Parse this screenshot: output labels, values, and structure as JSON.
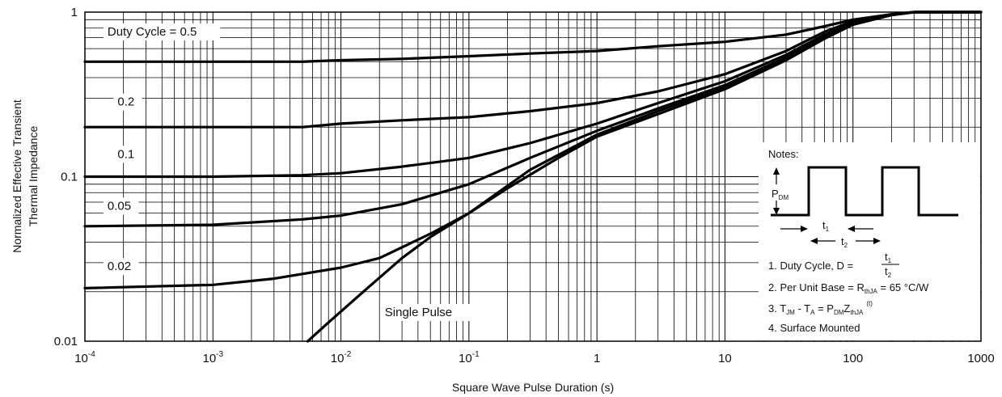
{
  "chart_data": {
    "type": "line",
    "xlabel": "Square Wave Pulse Duration (s)",
    "ylabel_line1": "Normalized Effective Transient",
    "ylabel_line2": "Thermal Impedance",
    "x_scale": "log",
    "y_scale": "log",
    "xlim": [
      0.0001,
      1000
    ],
    "ylim": [
      0.01,
      1
    ],
    "grid": true,
    "x_tick_labels": [
      {
        "value": 0.0001,
        "base": "10",
        "exp": "-4"
      },
      {
        "value": 0.001,
        "base": "10",
        "exp": "-3"
      },
      {
        "value": 0.01,
        "base": "10",
        "exp": "-2"
      },
      {
        "value": 0.1,
        "base": "10",
        "exp": "-1"
      },
      {
        "value": 1,
        "base": "1",
        "exp": ""
      },
      {
        "value": 10,
        "base": "10",
        "exp": ""
      },
      {
        "value": 100,
        "base": "100",
        "exp": ""
      },
      {
        "value": 1000,
        "base": "1000",
        "exp": ""
      }
    ],
    "y_tick_labels": [
      {
        "value": 1,
        "label": "1"
      },
      {
        "value": 0.1,
        "label": "0.1"
      },
      {
        "value": 0.01,
        "label": "0.01"
      }
    ],
    "series": [
      {
        "name": "Duty Cycle = 0.5",
        "label_x": 0.00015,
        "label_y": 0.72,
        "points": [
          [
            0.0001,
            0.5
          ],
          [
            0.001,
            0.5
          ],
          [
            0.005,
            0.5
          ],
          [
            0.01,
            0.51
          ],
          [
            0.03,
            0.52
          ],
          [
            0.1,
            0.54
          ],
          [
            0.3,
            0.56
          ],
          [
            1,
            0.58
          ],
          [
            3,
            0.62
          ],
          [
            10,
            0.66
          ],
          [
            30,
            0.73
          ],
          [
            60,
            0.82
          ],
          [
            100,
            0.9
          ],
          [
            200,
            0.97
          ],
          [
            300,
            1
          ],
          [
            1000,
            1
          ]
        ]
      },
      {
        "name": "0.2",
        "label_x": 0.00018,
        "label_y": 0.27,
        "points": [
          [
            0.0001,
            0.2
          ],
          [
            0.001,
            0.2
          ],
          [
            0.005,
            0.2
          ],
          [
            0.01,
            0.21
          ],
          [
            0.03,
            0.22
          ],
          [
            0.1,
            0.23
          ],
          [
            0.3,
            0.25
          ],
          [
            1,
            0.28
          ],
          [
            3,
            0.33
          ],
          [
            10,
            0.42
          ],
          [
            30,
            0.58
          ],
          [
            60,
            0.76
          ],
          [
            100,
            0.88
          ],
          [
            200,
            0.97
          ],
          [
            300,
            1
          ],
          [
            1000,
            1
          ]
        ]
      },
      {
        "name": "0.1",
        "label_x": 0.00018,
        "label_y": 0.13,
        "points": [
          [
            0.0001,
            0.1
          ],
          [
            0.001,
            0.1
          ],
          [
            0.005,
            0.102
          ],
          [
            0.01,
            0.105
          ],
          [
            0.03,
            0.115
          ],
          [
            0.1,
            0.13
          ],
          [
            0.3,
            0.16
          ],
          [
            1,
            0.21
          ],
          [
            3,
            0.28
          ],
          [
            10,
            0.38
          ],
          [
            30,
            0.55
          ],
          [
            60,
            0.73
          ],
          [
            100,
            0.86
          ],
          [
            200,
            0.96
          ],
          [
            300,
            1
          ],
          [
            1000,
            1
          ]
        ]
      },
      {
        "name": "0.05",
        "label_x": 0.00015,
        "label_y": 0.063,
        "points": [
          [
            0.0001,
            0.05
          ],
          [
            0.001,
            0.051
          ],
          [
            0.005,
            0.055
          ],
          [
            0.01,
            0.058
          ],
          [
            0.03,
            0.068
          ],
          [
            0.1,
            0.09
          ],
          [
            0.3,
            0.13
          ],
          [
            1,
            0.19
          ],
          [
            3,
            0.26
          ],
          [
            10,
            0.36
          ],
          [
            30,
            0.53
          ],
          [
            60,
            0.71
          ],
          [
            100,
            0.85
          ],
          [
            200,
            0.96
          ],
          [
            300,
            1
          ],
          [
            1000,
            1
          ]
        ]
      },
      {
        "name": "0.02",
        "label_x": 0.00015,
        "label_y": 0.027,
        "points": [
          [
            0.0001,
            0.021
          ],
          [
            0.001,
            0.022
          ],
          [
            0.003,
            0.024
          ],
          [
            0.01,
            0.028
          ],
          [
            0.02,
            0.032
          ],
          [
            0.05,
            0.045
          ],
          [
            0.1,
            0.06
          ],
          [
            0.3,
            0.11
          ],
          [
            1,
            0.18
          ],
          [
            3,
            0.25
          ],
          [
            10,
            0.35
          ],
          [
            30,
            0.52
          ],
          [
            60,
            0.7
          ],
          [
            100,
            0.84
          ],
          [
            200,
            0.96
          ],
          [
            300,
            1
          ],
          [
            1000,
            1
          ]
        ]
      },
      {
        "name": "Single Pulse",
        "label_x": 0.022,
        "label_y": 0.0142,
        "points": [
          [
            0.0055,
            0.01
          ],
          [
            0.008,
            0.013
          ],
          [
            0.015,
            0.02
          ],
          [
            0.03,
            0.032
          ],
          [
            0.05,
            0.043
          ],
          [
            0.1,
            0.06
          ],
          [
            0.2,
            0.085
          ],
          [
            0.5,
            0.13
          ],
          [
            1,
            0.175
          ],
          [
            3,
            0.24
          ],
          [
            10,
            0.34
          ],
          [
            30,
            0.51
          ],
          [
            60,
            0.69
          ],
          [
            100,
            0.84
          ],
          [
            200,
            0.96
          ],
          [
            300,
            1
          ],
          [
            1000,
            1
          ]
        ]
      }
    ]
  },
  "notes": {
    "title": "Notes:",
    "pdm_label": "P",
    "pdm_sub": "DM",
    "t1_label": "t",
    "t1_sub": "1",
    "t2_label": "t",
    "t2_sub": "2",
    "item1_text": "1. Duty Cycle, D =",
    "item1_num": "t",
    "item1_num_sub": "1",
    "item1_den": "t",
    "item1_den_sub": "2",
    "item2_text": "2. Per Unit Base = R",
    "item2_sub": "thJA",
    "item2_tail": " = 65 °C/W",
    "item3_a": "3. T",
    "item3_a_sub": "JM",
    "item3_b": " - T",
    "item3_b_sub": "A",
    "item3_c": " = P",
    "item3_c_sub": "DM",
    "item3_d": "Z",
    "item3_d_sub": "thJA",
    "item3_sup": "(t)",
    "item4_text": "4. Surface Mounted"
  }
}
